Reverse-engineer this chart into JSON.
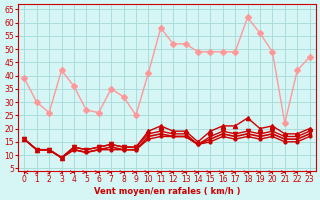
{
  "xlabel": "Vent moyen/en rafales ( km/h )",
  "ylabel": "",
  "bg_color": "#d6f5f5",
  "grid_color": "#aadddd",
  "axis_color": "#cc0000",
  "x_ticks": [
    0,
    1,
    2,
    3,
    4,
    5,
    6,
    7,
    8,
    9,
    10,
    11,
    12,
    13,
    14,
    15,
    16,
    17,
    18,
    19,
    20,
    21,
    22,
    23
  ],
  "y_ticks": [
    5,
    10,
    15,
    20,
    25,
    30,
    35,
    40,
    45,
    50,
    55,
    60,
    65
  ],
  "ylim": [
    4,
    67
  ],
  "xlim": [
    -0.5,
    23.5
  ],
  "series_light": {
    "color": "#ff9999",
    "marker": "D",
    "markersize": 3,
    "linewidth": 1,
    "data": [
      39,
      30,
      26,
      42,
      36,
      27,
      26,
      35,
      32,
      25,
      41,
      58,
      52,
      52,
      49,
      49,
      49,
      49,
      62,
      56,
      49,
      22,
      42,
      47
    ]
  },
  "series_mid": {
    "color": "#ff6666",
    "marker": "D",
    "markersize": 3,
    "linewidth": 1,
    "data": [
      null,
      null,
      null,
      null,
      null,
      null,
      null,
      null,
      null,
      null,
      null,
      null,
      null,
      null,
      null,
      null,
      null,
      null,
      null,
      null,
      null,
      null,
      null,
      null
    ]
  },
  "series_dark1": {
    "color": "#cc0000",
    "marker": "^",
    "markersize": 3,
    "linewidth": 1,
    "data": [
      16,
      12,
      12,
      9,
      13,
      12,
      13,
      14,
      13,
      13,
      19,
      21,
      19,
      19,
      15,
      19,
      21,
      21,
      24,
      20,
      21,
      18,
      18,
      20
    ]
  },
  "series_dark2": {
    "color": "#cc0000",
    "marker": "v",
    "markersize": 3,
    "linewidth": 1,
    "data": [
      16,
      12,
      12,
      9,
      13,
      12,
      13,
      14,
      13,
      13,
      18,
      19,
      18,
      18,
      14,
      17,
      19,
      18,
      19,
      18,
      19,
      17,
      17,
      19
    ]
  },
  "series_dark3": {
    "color": "#cc0000",
    "marker": "s",
    "markersize": 2,
    "linewidth": 1.2,
    "data": [
      16,
      12,
      12,
      9,
      12,
      11,
      12,
      13,
      12,
      12,
      17,
      18,
      17,
      17,
      14,
      16,
      18,
      17,
      18,
      17,
      18,
      16,
      16,
      18
    ]
  },
  "series_dark4": {
    "color": "#cc0000",
    "marker": "o",
    "markersize": 2,
    "linewidth": 1,
    "data": [
      16,
      12,
      12,
      9,
      12,
      11,
      12,
      12,
      12,
      12,
      16,
      17,
      17,
      17,
      14,
      15,
      17,
      16,
      17,
      16,
      17,
      15,
      15,
      17
    ]
  },
  "arrows": {
    "color": "#cc0000",
    "y": 3.5,
    "angles": [
      180,
      45,
      45,
      45,
      0,
      0,
      0,
      0,
      0,
      0,
      0,
      0,
      0,
      0,
      0,
      0,
      0,
      0,
      0,
      0,
      0,
      0,
      0,
      0
    ]
  }
}
